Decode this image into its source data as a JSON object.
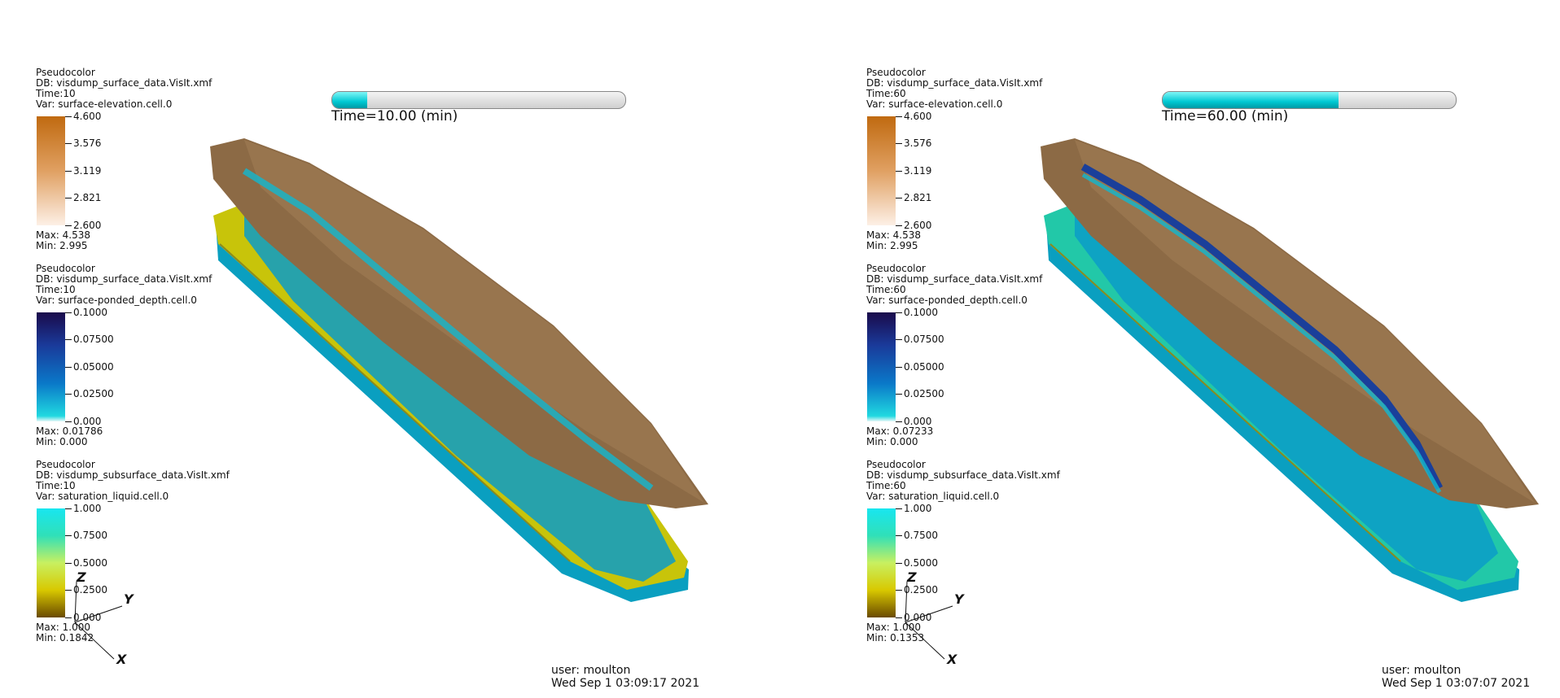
{
  "panels": [
    {
      "time_label": "Time=10.00  (min)",
      "time_progress": 0.12,
      "legends": [
        {
          "plot": "Pseudocolor",
          "db": "DB: visdump_surface_data.VisIt.xmf",
          "time": "Time:10",
          "var": "Var: surface-elevation.cell.0",
          "ticks": [
            "4.600",
            "3.576",
            "3.119",
            "2.821",
            "2.600"
          ],
          "max": "Max:  4.538",
          "min": "Min:  2.995",
          "colormap": "orange"
        },
        {
          "plot": "Pseudocolor",
          "db": "DB: visdump_surface_data.VisIt.xmf",
          "time": "Time:10",
          "var": "Var: surface-ponded_depth.cell.0",
          "ticks": [
            "0.1000",
            "0.07500",
            "0.05000",
            "0.02500",
            "0.000"
          ],
          "max": "Max:  0.01786",
          "min": "Min:  0.000",
          "colormap": "blue"
        },
        {
          "plot": "Pseudocolor",
          "db": "DB: visdump_subsurface_data.VisIt.xmf",
          "time": "Time:10",
          "var": "Var: saturation_liquid.cell.0",
          "ticks": [
            "1.000",
            "0.7500",
            "0.5000",
            "0.2500",
            "0.000"
          ],
          "max": "Max:  1.000",
          "min": "Min:  0.1842",
          "colormap": "saturation"
        }
      ],
      "user": "user: moulton",
      "date": "Wed Sep  1 03:09:17 2021",
      "axes": {
        "z": "Z",
        "y": "Y",
        "x": "X"
      }
    },
    {
      "time_label": "Time=60.00  (min)",
      "time_progress": 0.6,
      "legends": [
        {
          "plot": "Pseudocolor",
          "db": "DB: visdump_surface_data.VisIt.xmf",
          "time": "Time:60",
          "var": "Var: surface-elevation.cell.0",
          "ticks": [
            "4.600",
            "3.576",
            "3.119",
            "2.821",
            "2.600"
          ],
          "max": "Max:  4.538",
          "min": "Min:  2.995",
          "colormap": "orange"
        },
        {
          "plot": "Pseudocolor",
          "db": "DB: visdump_surface_data.VisIt.xmf",
          "time": "Time:60",
          "var": "Var: surface-ponded_depth.cell.0",
          "ticks": [
            "0.1000",
            "0.07500",
            "0.05000",
            "0.02500",
            "0.000"
          ],
          "max": "Max:  0.07233",
          "min": "Min:  0.000",
          "colormap": "blue"
        },
        {
          "plot": "Pseudocolor",
          "db": "DB: visdump_subsurface_data.VisIt.xmf",
          "time": "Time:60",
          "var": "Var: saturation_liquid.cell.0",
          "ticks": [
            "1.000",
            "0.7500",
            "0.5000",
            "0.2500",
            "0.000"
          ],
          "max": "Max:  1.000",
          "min": "Min:  0.1353",
          "colormap": "saturation"
        }
      ],
      "user": "user: moulton",
      "date": "Wed Sep  1 03:07:07 2021",
      "axes": {
        "z": "Z",
        "y": "Y",
        "x": "X"
      }
    }
  ],
  "colors": {
    "terrain": "#8c6a45",
    "slab_left_top": "#c8c40a",
    "slab_right_top": "#22c8a8",
    "slab_side": "#0a9fc0",
    "ponding": "#0b8fc7",
    "deep_ponding": "#1a3f9a",
    "time_fill": "#00c8d2"
  }
}
